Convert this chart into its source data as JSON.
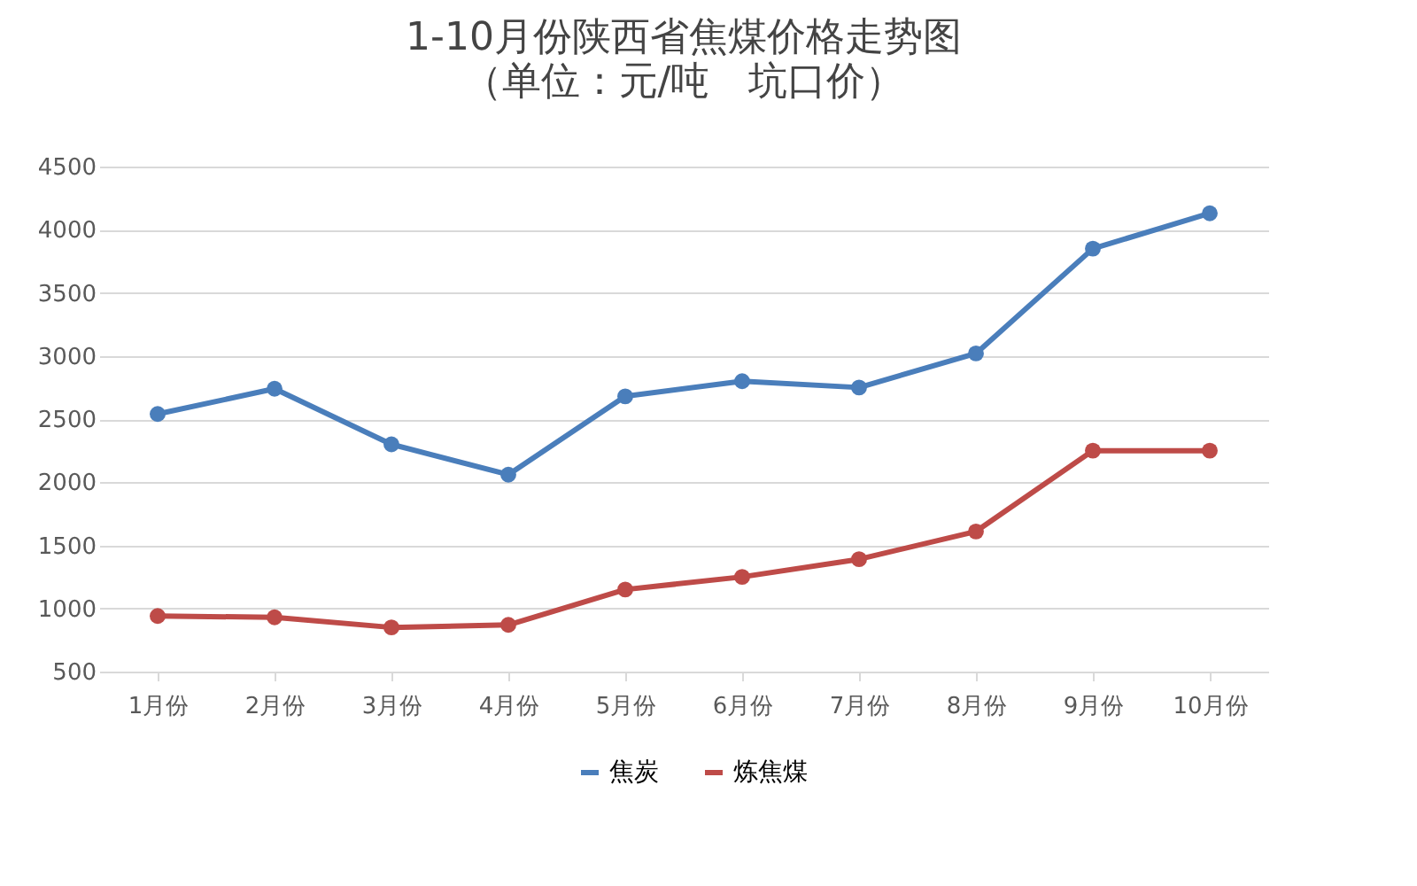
{
  "chart_data": {
    "type": "line",
    "title": "1-10月份陕西省焦煤价格走势图",
    "subtitle": "（单位：元/吨　坑口价）",
    "categories": [
      "1月份",
      "2月份",
      "3月份",
      "4月份",
      "5月份",
      "6月份",
      "7月份",
      "8月份",
      "9月份",
      "10月份"
    ],
    "series": [
      {
        "name": "焦炭",
        "color": "#4a7ebb",
        "values": [
          2540,
          2740,
          2300,
          2060,
          2680,
          2800,
          2750,
          3020,
          3850,
          4130
        ]
      },
      {
        "name": "炼焦煤",
        "color": "#be4b48",
        "values": [
          940,
          930,
          850,
          870,
          1150,
          1250,
          1390,
          1610,
          2250,
          2250
        ]
      }
    ],
    "ylim": [
      500,
      4500
    ],
    "yticks": [
      500,
      1000,
      1500,
      2000,
      2500,
      3000,
      3500,
      4000,
      4500
    ],
    "grid": "y",
    "legend": "bottom",
    "marker": "circle",
    "line_style": "solid"
  }
}
